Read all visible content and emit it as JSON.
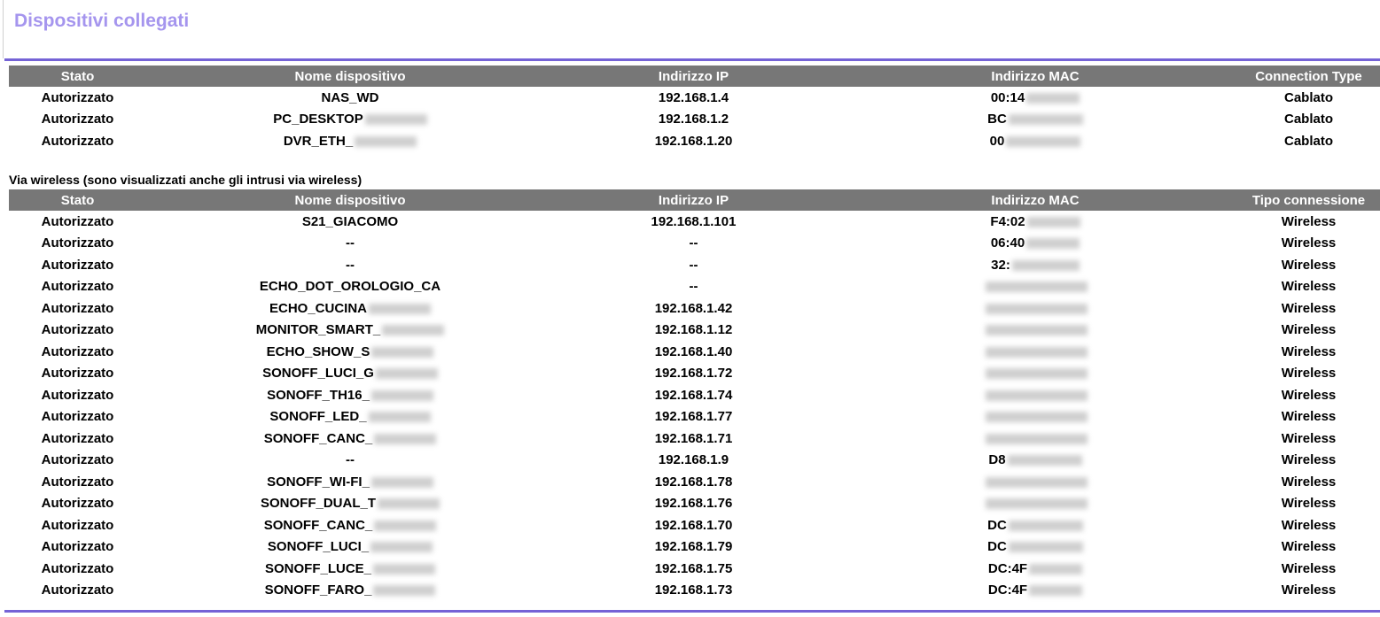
{
  "title": "Dispositivi collegati",
  "colors": {
    "title": "#a595ee",
    "rule": "#7563d6",
    "header_bg": "#777777"
  },
  "wired": {
    "headers": [
      "Stato",
      "Nome dispositivo",
      "Indirizzo IP",
      "Indirizzo MAC",
      "Connection Type"
    ],
    "rows": [
      [
        "Autorizzato",
        "NAS_WD",
        "192.168.1.4",
        "00:14",
        "Cablato"
      ],
      [
        "Autorizzato",
        "PC_DESKTOP",
        "192.168.1.2",
        "BC",
        "Cablato"
      ],
      [
        "Autorizzato",
        "DVR_ETH_",
        "192.168.1.20",
        "00",
        "Cablato"
      ]
    ]
  },
  "wireless_label": "Via wireless (sono visualizzati anche gli intrusi via wireless)",
  "wireless": {
    "headers": [
      "Stato",
      "Nome dispositivo",
      "Indirizzo IP",
      "Indirizzo MAC",
      "Tipo connessione"
    ],
    "rows": [
      [
        "Autorizzato",
        "S21_GIACOMO",
        "192.168.1.101",
        "F4:02",
        "Wireless"
      ],
      [
        "Autorizzato",
        "--",
        "--",
        "06:40",
        "Wireless"
      ],
      [
        "Autorizzato",
        "--",
        "--",
        "32:",
        "Wireless"
      ],
      [
        "Autorizzato",
        "ECHO_DOT_OROLOGIO_CA",
        "--",
        "",
        "Wireless"
      ],
      [
        "Autorizzato",
        "ECHO_CUCINA",
        "192.168.1.42",
        "",
        "Wireless"
      ],
      [
        "Autorizzato",
        "MONITOR_SMART_",
        "192.168.1.12",
        "",
        "Wireless"
      ],
      [
        "Autorizzato",
        "ECHO_SHOW_S",
        "192.168.1.40",
        "",
        "Wireless"
      ],
      [
        "Autorizzato",
        "SONOFF_LUCI_G",
        "192.168.1.72",
        "",
        "Wireless"
      ],
      [
        "Autorizzato",
        "SONOFF_TH16_",
        "192.168.1.74",
        "",
        "Wireless"
      ],
      [
        "Autorizzato",
        "SONOFF_LED_",
        "192.168.1.77",
        "",
        "Wireless"
      ],
      [
        "Autorizzato",
        "SONOFF_CANC_",
        "192.168.1.71",
        "",
        "Wireless"
      ],
      [
        "Autorizzato",
        "--",
        "192.168.1.9",
        "D8",
        "Wireless"
      ],
      [
        "Autorizzato",
        "SONOFF_WI-FI_",
        "192.168.1.78",
        "",
        "Wireless"
      ],
      [
        "Autorizzato",
        "SONOFF_DUAL_T",
        "192.168.1.76",
        "",
        "Wireless"
      ],
      [
        "Autorizzato",
        "SONOFF_CANC_",
        "192.168.1.70",
        "DC",
        "Wireless"
      ],
      [
        "Autorizzato",
        "SONOFF_LUCI_",
        "192.168.1.79",
        "DC",
        "Wireless"
      ],
      [
        "Autorizzato",
        "SONOFF_LUCE_",
        "192.168.1.75",
        "DC:4F",
        "Wireless"
      ],
      [
        "Autorizzato",
        "SONOFF_FARO_",
        "192.168.1.73",
        "DC:4F",
        "Wireless"
      ]
    ]
  }
}
